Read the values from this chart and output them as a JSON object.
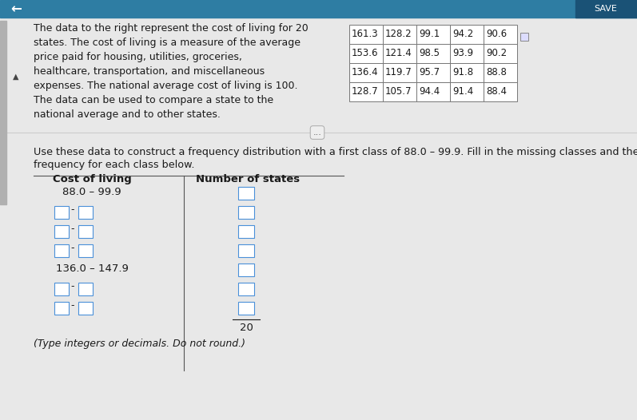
{
  "page_bg": "#e8e8e8",
  "top_bar_color": "#2e7da3",
  "description_text": [
    "The data to the right represent the cost of living for 20",
    "states. The cost of living is a measure of the average",
    "price paid for housing, utilities, groceries,",
    "healthcare, transportation, and miscellaneous",
    "expenses. The national average cost of living is 100.",
    "The data can be used to compare a state to the",
    "national average and to other states."
  ],
  "table_data": [
    [
      "161.3",
      "128.2",
      "99.1",
      "94.2",
      "90.6"
    ],
    [
      "153.6",
      "121.4",
      "98.5",
      "93.9",
      "90.2"
    ],
    [
      "136.4",
      "119.7",
      "95.7",
      "91.8",
      "88.8"
    ],
    [
      "128.7",
      "105.7",
      "94.4",
      "91.4",
      "88.4"
    ]
  ],
  "instruction_line1": "Use these data to construct a frequency distribution with a first class of 88.0 – 99.9. Fill in the missing classes and the",
  "instruction_line2": "frequency for each class below.",
  "freq_header_col1": "Cost of living",
  "freq_header_col2": "Number of states",
  "class_88": "88.0 – 99.9",
  "class_136": "136.0 – 147.9",
  "total_label": "20",
  "footer_text": "(Type integers or decimals. Do not round.)",
  "arrow_symbol": "←",
  "sep_dot_text": "...",
  "triangle_up": "▲"
}
